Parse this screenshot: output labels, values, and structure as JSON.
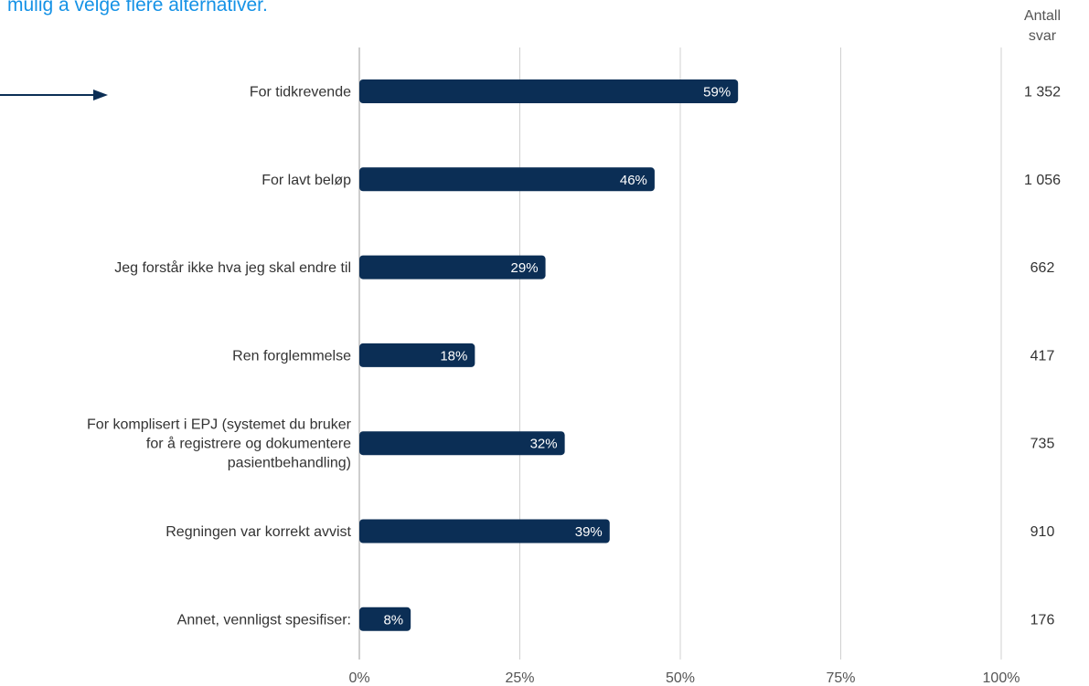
{
  "page": {
    "subtitle_fragment": "mulig å velge flere alternativer."
  },
  "colors": {
    "bar": "#0b2e55",
    "subtitle": "#1592e6",
    "arrow": "#0b2e55"
  },
  "chart_data": {
    "type": "bar",
    "orientation": "horizontal",
    "categories": [
      [
        "For tidkrevende"
      ],
      [
        "For lavt beløp"
      ],
      [
        "Jeg forstår ikke hva jeg skal endre til"
      ],
      [
        "Ren forglemmelse"
      ],
      [
        "For komplisert i EPJ (systemet du bruker",
        "for å registrere og dokumentere",
        "pasientbehandling)"
      ],
      [
        "Regningen var korrekt avvist"
      ],
      [
        "Annet, vennligst spesifiser:"
      ]
    ],
    "values": [
      59,
      46,
      29,
      18,
      32,
      39,
      8
    ],
    "data_labels": [
      "59%",
      "46%",
      "29%",
      "18%",
      "32%",
      "39%",
      "8%"
    ],
    "counts": [
      "1 352",
      "1 056",
      "662",
      "417",
      "735",
      "910",
      "176"
    ],
    "counts_header": [
      "Antall",
      "svar"
    ],
    "xlim": [
      0,
      100
    ],
    "xticks": [
      0,
      25,
      50,
      75,
      100
    ],
    "xtick_labels": [
      "0%",
      "25%",
      "50%",
      "75%",
      "100%"
    ],
    "grid": true,
    "annotation": "arrow pointing at first category"
  }
}
